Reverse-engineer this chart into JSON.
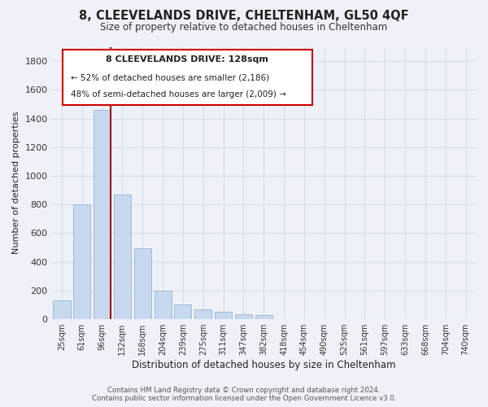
{
  "title": "8, CLEEVELANDS DRIVE, CHELTENHAM, GL50 4QF",
  "subtitle": "Size of property relative to detached houses in Cheltenham",
  "xlabel": "Distribution of detached houses by size in Cheltenham",
  "ylabel": "Number of detached properties",
  "footnote1": "Contains HM Land Registry data © Crown copyright and database right 2024.",
  "footnote2": "Contains public sector information licensed under the Open Government Licence v3.0.",
  "categories": [
    "25sqm",
    "61sqm",
    "96sqm",
    "132sqm",
    "168sqm",
    "204sqm",
    "239sqm",
    "275sqm",
    "311sqm",
    "347sqm",
    "382sqm",
    "418sqm",
    "454sqm",
    "490sqm",
    "525sqm",
    "561sqm",
    "597sqm",
    "633sqm",
    "668sqm",
    "704sqm",
    "740sqm"
  ],
  "values": [
    130,
    800,
    1460,
    870,
    495,
    200,
    105,
    68,
    50,
    35,
    28,
    0,
    0,
    0,
    0,
    0,
    0,
    0,
    0,
    0,
    0
  ],
  "bar_color": "#c8d8ee",
  "bar_edge_color": "#9ab4d4",
  "vline_x_index": 2,
  "vline_color": "#aa0000",
  "annotation_title": "8 CLEEVELANDS DRIVE: 128sqm",
  "annotation_line1": "← 52% of detached houses are smaller (2,186)",
  "annotation_line2": "48% of semi-detached houses are larger (2,009) →",
  "annotation_box_color": "#ffffff",
  "annotation_box_edge": "#cc0000",
  "ylim": [
    0,
    1900
  ],
  "yticks": [
    0,
    200,
    400,
    600,
    800,
    1000,
    1200,
    1400,
    1600,
    1800
  ],
  "bg_color": "#eef2f8",
  "grid_color": "#d8dde8",
  "title_fontsize": 10.5,
  "subtitle_fontsize": 8.5
}
